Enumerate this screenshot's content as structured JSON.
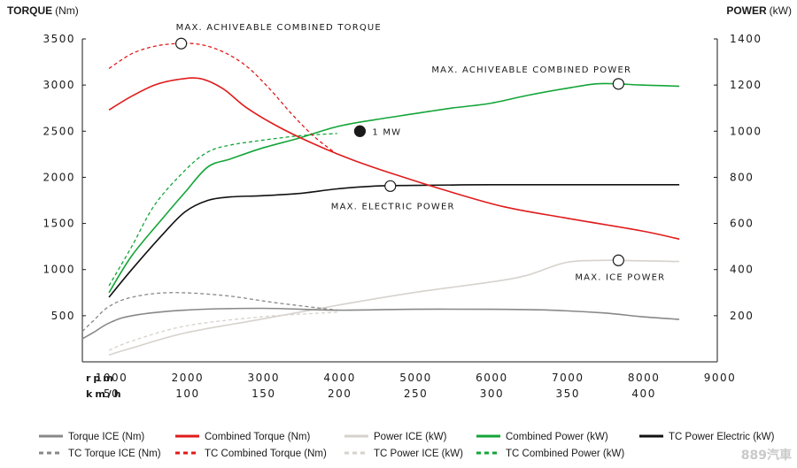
{
  "chart_data": {
    "type": "line",
    "left_axis": {
      "title": "TORQUE",
      "unit": "(Nm)",
      "ylim": [
        0,
        3500
      ],
      "ticks": [
        500,
        1000,
        1500,
        2000,
        2500,
        3000,
        3500
      ]
    },
    "right_axis": {
      "title": "POWER",
      "unit": "(kW)",
      "ylim": [
        0,
        1400
      ],
      "ticks": [
        200,
        400,
        600,
        800,
        1000,
        1200,
        1400
      ]
    },
    "x_axis": {
      "xlim": [
        650,
        9000
      ],
      "rpm_label": "rpm",
      "rpm_ticks": [
        1000,
        2000,
        3000,
        4000,
        5000,
        6000,
        7000,
        8000,
        9000
      ],
      "speed_label": "km/h",
      "speed_ticks": [
        50,
        100,
        150,
        200,
        250,
        300,
        350,
        400
      ]
    },
    "grid": false,
    "legend_position": "bottom",
    "series": [
      {
        "name": "Torque ICE (Nm)",
        "axis": "left",
        "color": "#888888",
        "dash": "solid",
        "x": [
          650,
          800,
          1000,
          1300,
          2000,
          3000,
          4000,
          5000,
          6000,
          6800,
          7500,
          8000,
          8500
        ],
        "y": [
          250,
          320,
          420,
          500,
          560,
          580,
          560,
          570,
          570,
          560,
          530,
          490,
          460
        ]
      },
      {
        "name": "TC Torque ICE (Nm)",
        "axis": "left",
        "color": "#888888",
        "dash": "dashed",
        "x": [
          650,
          800,
          1000,
          1300,
          1800,
          2500,
          3200,
          4000
        ],
        "y": [
          330,
          450,
          600,
          700,
          750,
          720,
          640,
          560
        ]
      },
      {
        "name": "Combined Torque (Nm)",
        "axis": "left",
        "color": "#e01b1b",
        "dash": "solid",
        "x": [
          1000,
          1300,
          1600,
          1900,
          2200,
          2500,
          2800,
          3200,
          3700,
          4200,
          4800,
          5500,
          6200,
          7000,
          8000,
          8500
        ],
        "y": [
          2730,
          2880,
          3000,
          3060,
          3070,
          2960,
          2760,
          2560,
          2360,
          2190,
          2020,
          1840,
          1680,
          1560,
          1420,
          1330
        ]
      },
      {
        "name": "TC Combined Torque (Nm)",
        "axis": "left",
        "color": "#e01b1b",
        "dash": "dashed",
        "x": [
          1000,
          1300,
          1600,
          1900,
          2200,
          2500,
          2800,
          3100,
          3400,
          3700,
          4000
        ],
        "y": [
          3180,
          3340,
          3420,
          3450,
          3440,
          3360,
          3210,
          2970,
          2690,
          2440,
          2250
        ]
      },
      {
        "name": "Power ICE (kW)",
        "axis": "right",
        "color": "#d6d2cc",
        "dash": "solid",
        "x": [
          1000,
          1300,
          2000,
          3000,
          4000,
          5000,
          6000,
          6500,
          7000,
          7500,
          8000,
          8500
        ],
        "y": [
          30,
          60,
          125,
          185,
          245,
          300,
          345,
          375,
          430,
          440,
          438,
          435
        ]
      },
      {
        "name": "TC Power ICE (kW)",
        "axis": "right",
        "color": "#d6d2cc",
        "dash": "dashed",
        "x": [
          1000,
          1300,
          2000,
          3000,
          4000
        ],
        "y": [
          50,
          90,
          155,
          195,
          215
        ]
      },
      {
        "name": "Combined Power (kW)",
        "axis": "right",
        "color": "#13a538",
        "dash": "solid",
        "x": [
          1000,
          1300,
          1700,
          2000,
          2300,
          2600,
          3000,
          3500,
          4000,
          4500,
          5000,
          5500,
          6000,
          6500,
          7000,
          7400,
          7700,
          8000,
          8500
        ],
        "y": [
          300,
          460,
          620,
          735,
          845,
          880,
          925,
          970,
          1020,
          1050,
          1075,
          1100,
          1120,
          1155,
          1185,
          1205,
          1205,
          1200,
          1195
        ]
      },
      {
        "name": "TC Combined Power (kW)",
        "axis": "right",
        "color": "#13a538",
        "dash": "dashed",
        "x": [
          1000,
          1300,
          1600,
          2000,
          2300,
          2600,
          3000,
          3500,
          4000
        ],
        "y": [
          330,
          500,
          680,
          830,
          910,
          940,
          960,
          980,
          990
        ]
      },
      {
        "name": "TC Power Electric (kW)",
        "axis": "right",
        "color": "#111111",
        "dash": "solid",
        "x": [
          1000,
          1300,
          1700,
          2000,
          2300,
          2600,
          3000,
          3500,
          4000,
          4500,
          5000,
          6000,
          7000,
          8000,
          8500
        ],
        "y": [
          280,
          400,
          550,
          650,
          700,
          715,
          720,
          730,
          750,
          762,
          765,
          768,
          768,
          768,
          768
        ]
      }
    ],
    "annotations": [
      {
        "text": "MAX. ACHIVEABLE COMBINED TORQUE",
        "marker": "open",
        "axis": "left",
        "x": 1950,
        "y": 3450
      },
      {
        "text": "MAX. ACHIVEABLE COMBINED POWER",
        "marker": "open",
        "axis": "right",
        "x": 7700,
        "y": 1205
      },
      {
        "text": "1 MW",
        "marker": "filled",
        "axis": "right",
        "x": 4300,
        "y": 1000
      },
      {
        "text": "MAX. ELECTRIC POWER",
        "marker": "open",
        "axis": "right",
        "x": 4700,
        "y": 762
      },
      {
        "text": "MAX. ICE POWER",
        "marker": "open",
        "axis": "right",
        "x": 7700,
        "y": 440
      }
    ]
  },
  "watermark": "889汽車"
}
